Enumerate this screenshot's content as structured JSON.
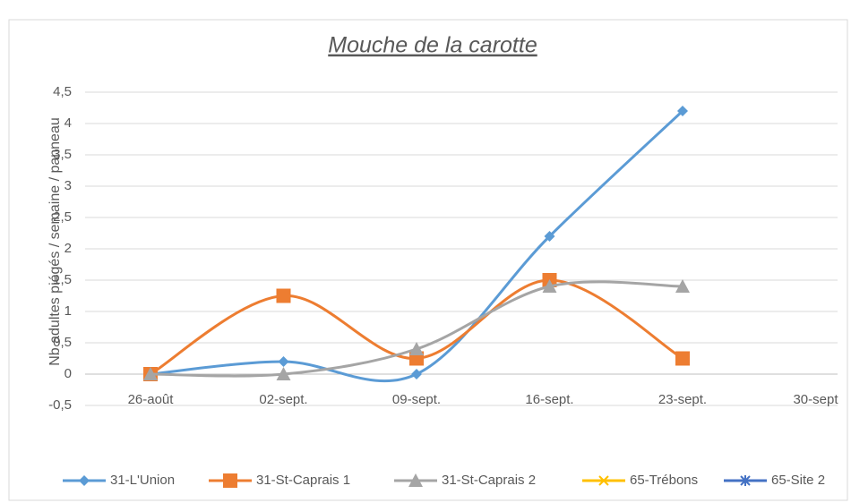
{
  "chart_data": {
    "type": "line",
    "smooth": true,
    "title": "Mouche de la carotte",
    "y_label": "Nb adultes piégés / semaine / panneau",
    "categories": [
      "26-août",
      "02-sept.",
      "09-sept.",
      "16-sept.",
      "23-sept.",
      "30-sept"
    ],
    "series": [
      {
        "name": "31-L'Union",
        "color": "#5b9bd5",
        "marker": "diamond",
        "values": [
          0,
          0.2,
          0,
          2.2,
          4.2,
          null
        ]
      },
      {
        "name": "31-St-Caprais 1",
        "color": "#ed7d31",
        "marker": "square",
        "values": [
          0,
          1.25,
          0.25,
          1.5,
          0.25,
          null
        ]
      },
      {
        "name": "31-St-Caprais 2",
        "color": "#a5a5a5",
        "marker": "triangle",
        "values": [
          0,
          0,
          0.4,
          1.4,
          1.4,
          null
        ]
      },
      {
        "name": "65-Trébons",
        "color": "#ffc000",
        "marker": "x",
        "values": [
          null,
          null,
          null,
          null,
          null,
          null
        ]
      },
      {
        "name": "65-Site 2",
        "color": "#4472c4",
        "marker": "star",
        "values": [
          null,
          null,
          null,
          null,
          null,
          null
        ]
      }
    ],
    "ylim": [
      -0.5,
      4.5
    ],
    "yticks": [
      {
        "value": -0.5,
        "label": "-0,5"
      },
      0,
      {
        "value": 0.5,
        "label": "0,5"
      },
      1,
      {
        "value": 1.5,
        "label": "1,5"
      },
      2,
      {
        "value": 2.5,
        "label": "2,5"
      },
      3,
      {
        "value": 3.5,
        "label": "3,5"
      },
      4,
      {
        "value": 4.5,
        "label": "4,5"
      }
    ],
    "grid": true,
    "legend": "bottom"
  }
}
